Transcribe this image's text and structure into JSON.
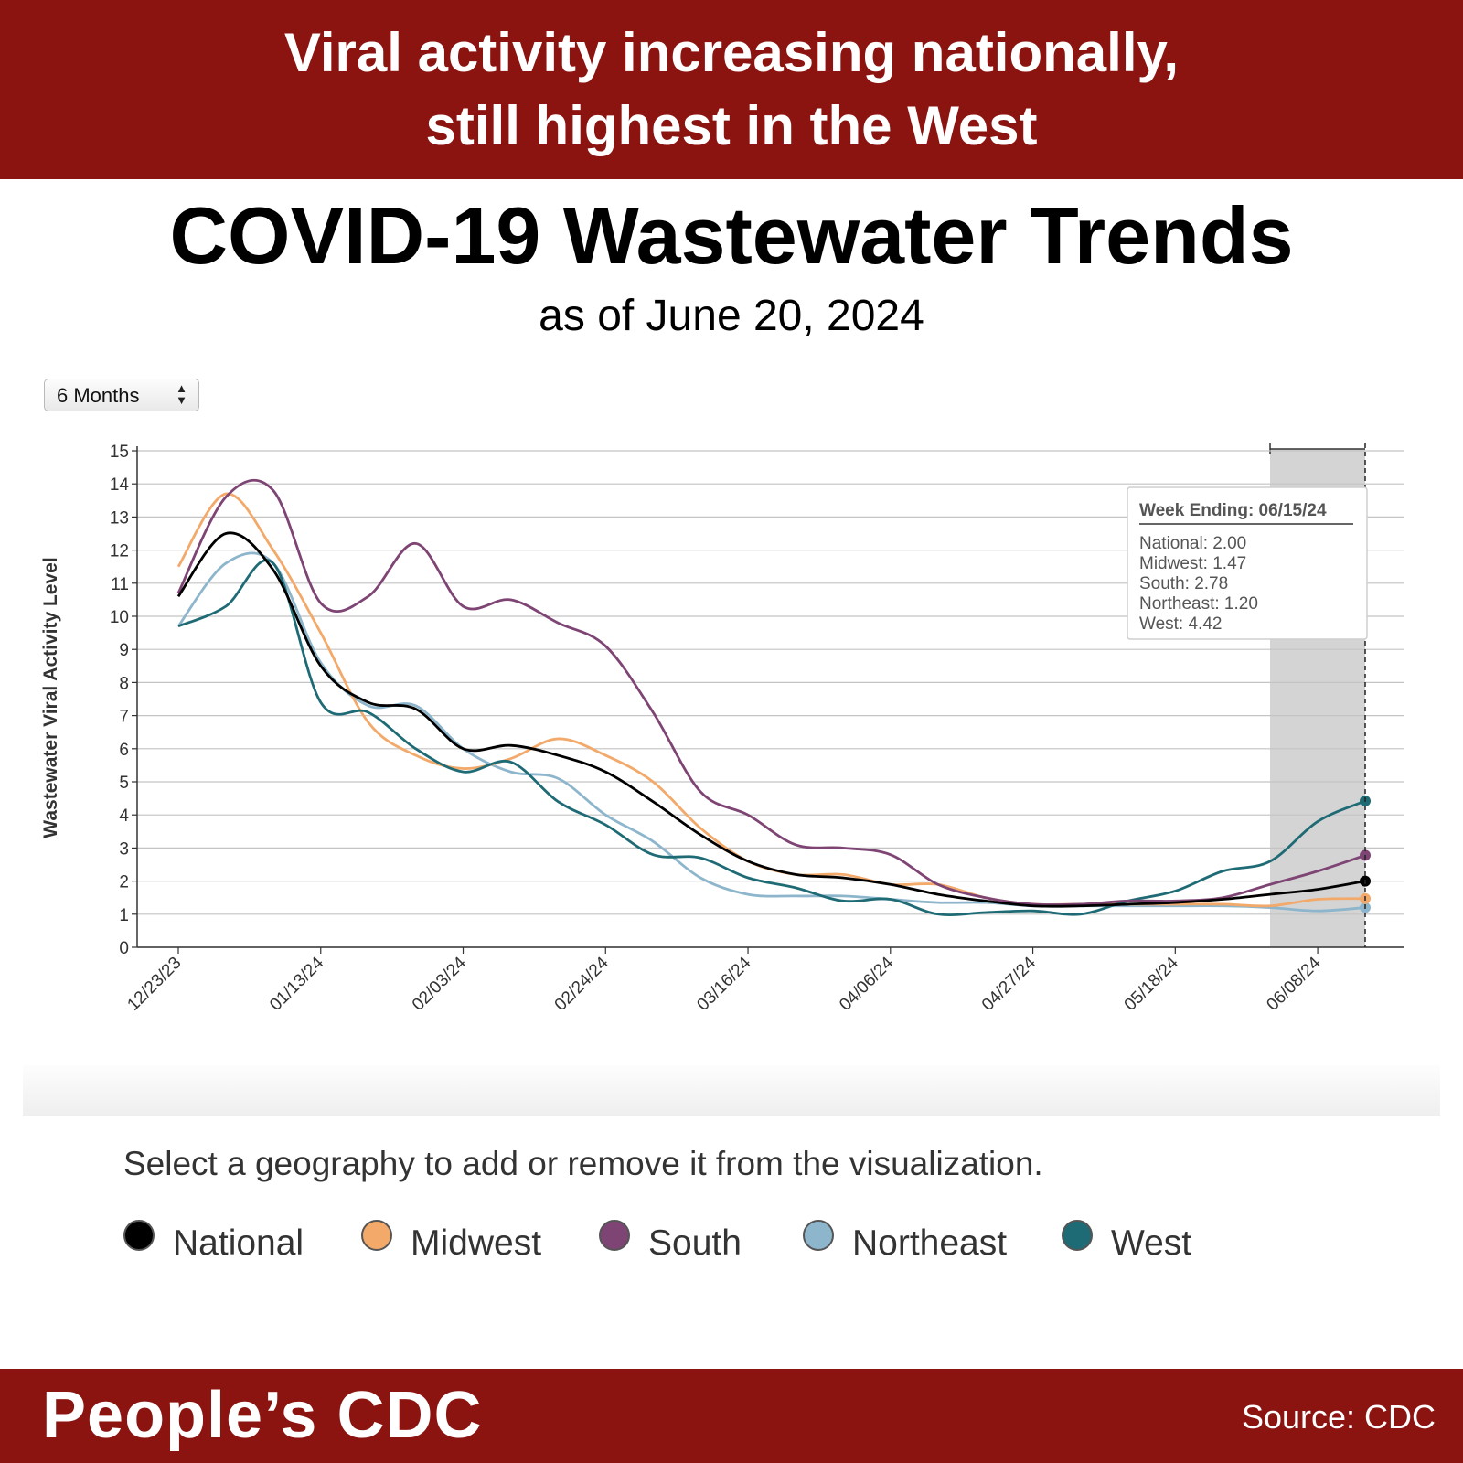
{
  "header": {
    "headline_line1": "Viral activity increasing nationally,",
    "headline_line2": "still highest in the West",
    "banner_color": "#8b1411"
  },
  "title": "COVID-19 Wastewater Trends",
  "subtitle": "as of June 20, 2024",
  "range_select": {
    "value": "6 Months",
    "icon": "up-down-arrows-icon"
  },
  "legend_hint": "Select a geography to add or remove it from the visualization.",
  "tooltip": {
    "header": "Week Ending: 06/15/24",
    "rows": [
      "National: 2.00",
      "Midwest: 1.47",
      "South: 2.78",
      "Northeast: 1.20",
      "West: 4.42"
    ]
  },
  "footer": {
    "brand": "People’s CDC",
    "source": "Source: CDC"
  },
  "chart_data": {
    "type": "line",
    "xlabel": "Week Ending",
    "ylabel": "Wastewater Viral Activity Level",
    "ylim": [
      0,
      15
    ],
    "yticks": [
      0,
      1,
      2,
      3,
      4,
      5,
      6,
      7,
      8,
      9,
      10,
      11,
      12,
      13,
      14,
      15
    ],
    "grid": true,
    "x_dates": [
      "12/23/23",
      "12/30/23",
      "01/06/24",
      "01/13/24",
      "01/20/24",
      "01/27/24",
      "02/03/24",
      "02/10/24",
      "02/17/24",
      "02/24/24",
      "03/02/24",
      "03/09/24",
      "03/16/24",
      "03/23/24",
      "03/30/24",
      "04/06/24",
      "04/13/24",
      "04/20/24",
      "04/27/24",
      "05/04/24",
      "05/11/24",
      "05/18/24",
      "05/25/24",
      "06/01/24",
      "06/08/24",
      "06/15/24"
    ],
    "x_tick_labels": [
      "12/23/23",
      "01/13/24",
      "02/03/24",
      "02/24/24",
      "03/16/24",
      "04/06/24",
      "04/27/24",
      "05/18/24",
      "06/08/24"
    ],
    "highlight_week": "06/15/24",
    "series": [
      {
        "name": "National",
        "color": "#000000",
        "values": [
          10.6,
          12.5,
          11.4,
          8.5,
          7.4,
          7.2,
          6.0,
          6.1,
          5.8,
          5.3,
          4.4,
          3.4,
          2.6,
          2.2,
          2.1,
          1.9,
          1.6,
          1.4,
          1.25,
          1.25,
          1.3,
          1.35,
          1.45,
          1.6,
          1.75,
          2.0
        ]
      },
      {
        "name": "Midwest",
        "color": "#f2a96a",
        "values": [
          11.5,
          13.7,
          12.0,
          9.5,
          6.8,
          5.8,
          5.4,
          5.7,
          6.3,
          5.8,
          5.0,
          3.6,
          2.6,
          2.2,
          2.2,
          1.9,
          1.9,
          1.5,
          1.3,
          1.3,
          1.3,
          1.3,
          1.3,
          1.25,
          1.45,
          1.47
        ]
      },
      {
        "name": "South",
        "color": "#7e4474",
        "values": [
          10.7,
          13.6,
          13.8,
          10.4,
          10.6,
          12.2,
          10.3,
          10.5,
          9.8,
          9.1,
          7.1,
          4.7,
          4.0,
          3.1,
          3.0,
          2.8,
          1.9,
          1.5,
          1.3,
          1.3,
          1.4,
          1.4,
          1.5,
          1.9,
          2.3,
          2.78
        ]
      },
      {
        "name": "Northeast",
        "color": "#8db6cc",
        "values": [
          9.7,
          11.6,
          11.6,
          8.6,
          7.3,
          7.3,
          6.0,
          5.3,
          5.1,
          4.0,
          3.2,
          2.1,
          1.6,
          1.55,
          1.55,
          1.45,
          1.35,
          1.35,
          1.25,
          1.25,
          1.25,
          1.25,
          1.25,
          1.2,
          1.1,
          1.2
        ]
      },
      {
        "name": "West",
        "color": "#1f6b75",
        "values": [
          9.7,
          10.3,
          11.6,
          7.4,
          7.1,
          6.0,
          5.3,
          5.6,
          4.4,
          3.7,
          2.8,
          2.7,
          2.1,
          1.8,
          1.4,
          1.45,
          1.0,
          1.05,
          1.1,
          1.0,
          1.4,
          1.7,
          2.3,
          2.6,
          3.8,
          4.42
        ]
      }
    ]
  }
}
